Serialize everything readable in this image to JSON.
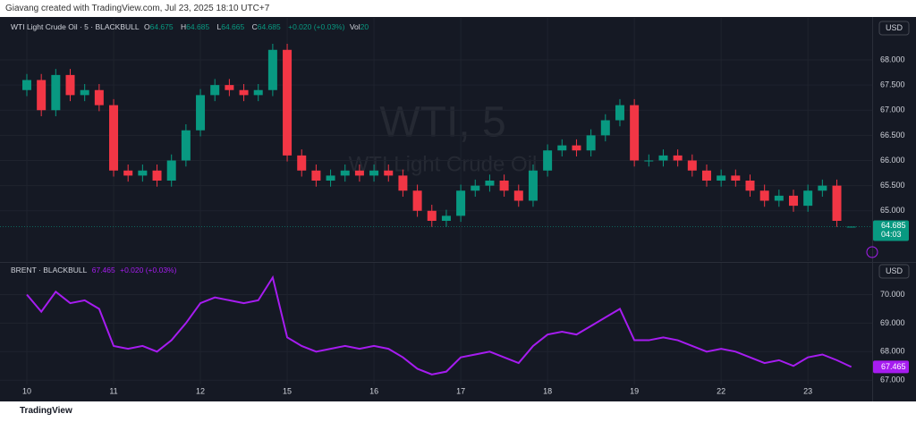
{
  "credit": "Giavang created with TradingView.com, Jul 23, 2025 18:10 UTC+7",
  "footer": "TradingView",
  "chart_data": [
    {
      "type": "candlestick",
      "title": "WTI Light Crude Oil · 5 · BLACKBULL",
      "watermark": "WTI, 5",
      "watermark_subtitle": "WTI Light Crude Oil",
      "currency": "USD",
      "countdown": "04:03",
      "legend_keys": [
        "O",
        "H",
        "L",
        "C"
      ],
      "volume_key": "Vol",
      "volume": 20,
      "change": "+0.020 (+0.03%)",
      "up_color": "#089981",
      "down_color": "#f23645",
      "ylim": [
        64.0,
        68.8
      ],
      "yticks": [
        {
          "value": 65,
          "label": "65.000"
        },
        {
          "value": 65.5,
          "label": "65.500"
        },
        {
          "value": 66,
          "label": "66.000"
        },
        {
          "value": 66.5,
          "label": "66.500"
        },
        {
          "value": 67,
          "label": "67.000"
        },
        {
          "value": 67.5,
          "label": "67.500"
        },
        {
          "value": 68,
          "label": "68.000"
        }
      ],
      "open": [
        67.4,
        67.6,
        67.0,
        67.7,
        67.3,
        67.4,
        67.1,
        65.8,
        65.7,
        65.8,
        65.6,
        66.0,
        66.6,
        67.3,
        67.5,
        67.4,
        67.3,
        67.4,
        68.2,
        66.1,
        65.8,
        65.6,
        65.7,
        65.8,
        65.7,
        65.8,
        65.7,
        65.4,
        65.0,
        64.8,
        64.9,
        65.4,
        65.5,
        65.6,
        65.4,
        65.2,
        65.8,
        66.2,
        66.3,
        66.2,
        66.5,
        66.8,
        67.1,
        66.0,
        66.0,
        66.1,
        66.0,
        65.8,
        65.6,
        65.7,
        65.6,
        65.4,
        65.2,
        65.3,
        65.1,
        65.4,
        65.5,
        64.675
      ],
      "high": [
        67.72,
        67.72,
        67.82,
        67.82,
        67.52,
        67.52,
        67.22,
        65.92,
        65.92,
        65.92,
        66.12,
        66.72,
        67.42,
        67.62,
        67.62,
        67.52,
        67.52,
        68.32,
        68.32,
        66.22,
        65.92,
        65.82,
        65.92,
        65.92,
        65.92,
        65.92,
        65.82,
        65.52,
        65.12,
        65.02,
        65.52,
        65.62,
        65.72,
        65.72,
        65.52,
        65.92,
        66.32,
        66.42,
        66.42,
        66.62,
        66.92,
        67.22,
        67.22,
        66.12,
        66.22,
        66.22,
        66.12,
        65.92,
        65.82,
        65.82,
        65.72,
        65.52,
        65.42,
        65.42,
        65.52,
        65.62,
        65.62,
        64.685
      ],
      "low": [
        67.28,
        66.88,
        66.88,
        67.18,
        67.18,
        66.98,
        65.68,
        65.58,
        65.58,
        65.48,
        65.48,
        65.88,
        66.48,
        67.18,
        67.28,
        67.18,
        67.18,
        67.28,
        65.98,
        65.68,
        65.48,
        65.48,
        65.58,
        65.58,
        65.58,
        65.58,
        65.28,
        64.88,
        64.68,
        64.68,
        64.78,
        65.28,
        65.38,
        65.28,
        65.08,
        65.08,
        65.68,
        66.08,
        66.08,
        66.08,
        66.38,
        66.68,
        65.88,
        65.88,
        65.88,
        65.88,
        65.68,
        65.48,
        65.48,
        65.48,
        65.28,
        65.08,
        65.08,
        64.98,
        64.98,
        65.28,
        64.68,
        64.665
      ],
      "close": [
        67.6,
        67.0,
        67.7,
        67.3,
        67.4,
        67.1,
        65.8,
        65.7,
        65.8,
        65.6,
        66.0,
        66.6,
        67.3,
        67.5,
        67.4,
        67.3,
        67.4,
        68.2,
        66.1,
        65.8,
        65.6,
        65.7,
        65.8,
        65.7,
        65.8,
        65.7,
        65.4,
        65.0,
        64.8,
        64.9,
        65.4,
        65.5,
        65.6,
        65.4,
        65.2,
        65.8,
        66.2,
        66.3,
        66.2,
        66.5,
        66.8,
        67.1,
        66.0,
        66.0,
        66.1,
        66.0,
        65.8,
        65.6,
        65.7,
        65.6,
        65.4,
        65.2,
        65.3,
        65.1,
        65.4,
        65.5,
        64.8,
        64.685
      ]
    },
    {
      "type": "line",
      "title": "BRENT · BLACKBULL",
      "currency": "USD",
      "change": "+0.020 (+0.03%)",
      "categories": [
        "10",
        null,
        null,
        null,
        null,
        null,
        "11",
        null,
        null,
        null,
        null,
        null,
        "12",
        null,
        null,
        null,
        null,
        null,
        "15",
        null,
        null,
        null,
        null,
        null,
        "16",
        null,
        null,
        null,
        null,
        null,
        "17",
        null,
        null,
        null,
        null,
        null,
        "18",
        null,
        null,
        null,
        null,
        null,
        "19",
        null,
        null,
        null,
        null,
        null,
        "22",
        null,
        null,
        null,
        null,
        null,
        "23",
        null,
        null,
        null
      ],
      "ylim": [
        66.85,
        71.05
      ],
      "yticks": [
        {
          "value": 67,
          "label": "67.000"
        },
        {
          "value": 68,
          "label": "68.000"
        },
        {
          "value": 69,
          "label": "69.000"
        },
        {
          "value": 70,
          "label": "70.000"
        }
      ],
      "series": [
        {
          "name": "BRENT",
          "color": "#a61cf0",
          "values": [
            70.0,
            69.4,
            70.1,
            69.7,
            69.8,
            69.5,
            68.2,
            68.1,
            68.2,
            68.0,
            68.4,
            69.0,
            69.7,
            69.9,
            69.8,
            69.7,
            69.8,
            70.6,
            68.5,
            68.2,
            68.0,
            68.1,
            68.2,
            68.1,
            68.2,
            68.1,
            67.8,
            67.4,
            67.2,
            67.3,
            67.8,
            67.9,
            68.0,
            67.8,
            67.6,
            68.2,
            68.6,
            68.7,
            68.6,
            68.9,
            69.2,
            69.5,
            68.4,
            68.4,
            68.5,
            68.4,
            68.2,
            68.0,
            68.1,
            68.0,
            67.8,
            67.6,
            67.7,
            67.5,
            67.8,
            67.9,
            67.7,
            67.465
          ]
        }
      ]
    }
  ]
}
